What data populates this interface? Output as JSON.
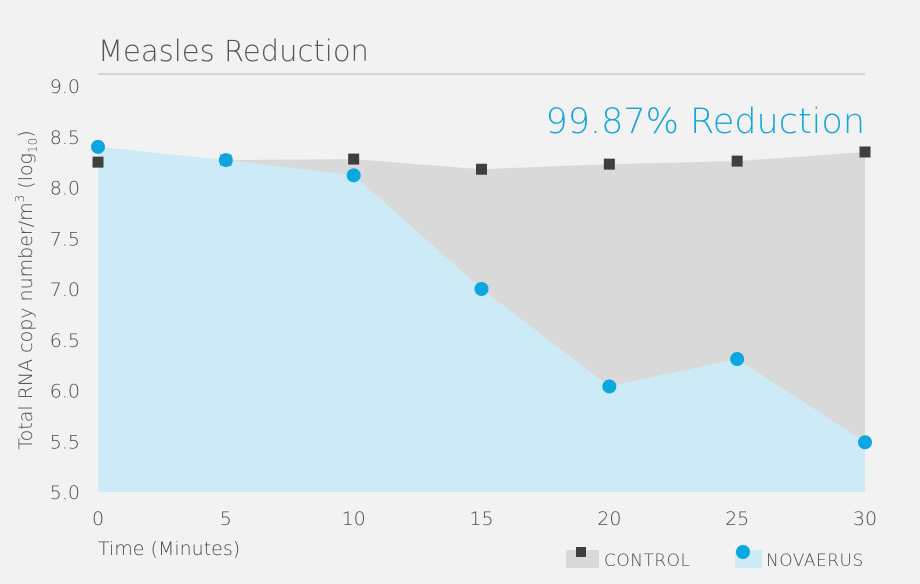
{
  "chart_data": {
    "type": "area",
    "title": "Measles Reduction",
    "annotation": "99.87% Reduction",
    "xlabel": "Time (Minutes)",
    "ylabel_main": "Total RNA copy number/m",
    "ylabel_sup": "3",
    "ylabel_log": " (log",
    "ylabel_sub": "10",
    "ylabel_close": ")",
    "x": [
      0,
      5,
      10,
      15,
      20,
      25,
      30
    ],
    "x_ticks": [
      "0",
      "5",
      "10",
      "15",
      "20",
      "25",
      "30"
    ],
    "y_ticks": [
      "5.0",
      "5.5",
      "6.0",
      "6.5",
      "7.0",
      "7.5",
      "8.0",
      "8.5",
      "9.0"
    ],
    "xlim": [
      0,
      30
    ],
    "ylim": [
      5.0,
      9.0
    ],
    "grid": false,
    "legend_position": "bottom-right",
    "series": [
      {
        "name": "CONTROL",
        "marker": "square",
        "marker_color": "#3f3f3f",
        "fill_color": "#d9d9d9",
        "values": [
          8.25,
          8.27,
          8.28,
          8.18,
          8.23,
          8.26,
          8.35
        ]
      },
      {
        "name": "NOVAERUS",
        "marker": "circle",
        "marker_color": "#0aa7e0",
        "fill_color": "#cdebf6",
        "values": [
          8.4,
          8.27,
          8.12,
          7.0,
          6.04,
          6.31,
          5.49
        ]
      }
    ],
    "colors": {
      "annotation": "#12a5dc",
      "title_rule": "#b8b8b8",
      "background": "#f1f2f1"
    }
  }
}
